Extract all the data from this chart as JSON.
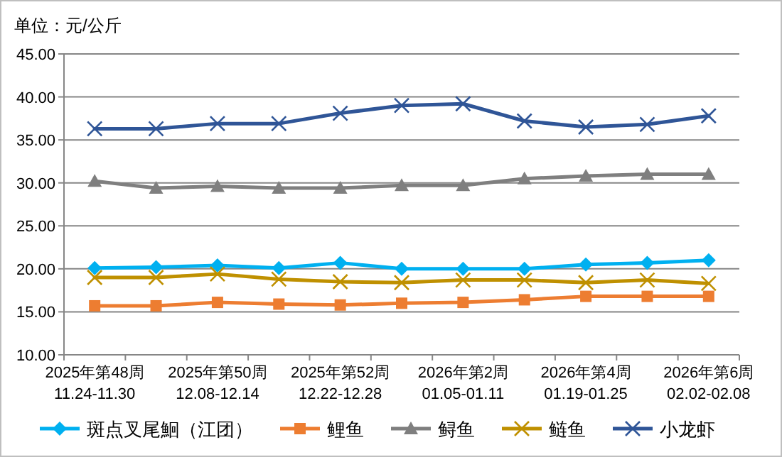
{
  "chart_data": {
    "type": "line",
    "title": "单位：元/公斤",
    "categories": [
      "2025年第48周\n11.24-11.30",
      null,
      "2025年第50周\n12.08-12.14",
      null,
      "2025年第52周\n12.22-12.28",
      null,
      "2026年第2周\n01.05-01.11",
      null,
      "2026年第4周\n01.19-01.25",
      null,
      "2026年第6周\n02.02-02.08"
    ],
    "ylim": [
      10,
      45
    ],
    "yticks": [
      {
        "value": 10,
        "label": "10.00"
      },
      {
        "value": 15,
        "label": "15.00"
      },
      {
        "value": 20,
        "label": "20.00"
      },
      {
        "value": 25,
        "label": "25.00"
      },
      {
        "value": 30,
        "label": "30.00"
      },
      {
        "value": 35,
        "label": "35.00"
      },
      {
        "value": 40,
        "label": "40.00"
      },
      {
        "value": 45,
        "label": "45.00"
      }
    ],
    "grid": "y",
    "legend": "bottom",
    "series": [
      {
        "name": "斑点叉尾鮰（江团）",
        "color": "#00b0f0",
        "marker": "diamond",
        "values": [
          20.1,
          20.2,
          20.4,
          20.1,
          20.7,
          20.0,
          20.0,
          20.0,
          20.5,
          20.7,
          21.0
        ]
      },
      {
        "name": "鲤鱼",
        "color": "#ed7d31",
        "marker": "square",
        "values": [
          15.7,
          15.7,
          16.1,
          15.9,
          15.8,
          16.0,
          16.1,
          16.4,
          16.8,
          16.8,
          16.8
        ]
      },
      {
        "name": "鲟鱼",
        "color": "#7f7f7f",
        "marker": "triangle",
        "values": [
          30.2,
          29.4,
          29.6,
          29.4,
          29.4,
          29.7,
          29.7,
          30.5,
          30.8,
          31.0,
          31.0
        ]
      },
      {
        "name": "鲢鱼",
        "color": "#bf9000",
        "marker": "cross",
        "values": [
          19.0,
          19.0,
          19.4,
          18.8,
          18.5,
          18.4,
          18.7,
          18.7,
          18.4,
          18.7,
          18.3
        ]
      },
      {
        "name": "小龙虾",
        "color": "#2f5597",
        "marker": "cross",
        "values": [
          36.3,
          36.3,
          36.9,
          36.9,
          38.1,
          39.0,
          39.2,
          37.2,
          36.5,
          36.8,
          37.8
        ]
      }
    ]
  }
}
